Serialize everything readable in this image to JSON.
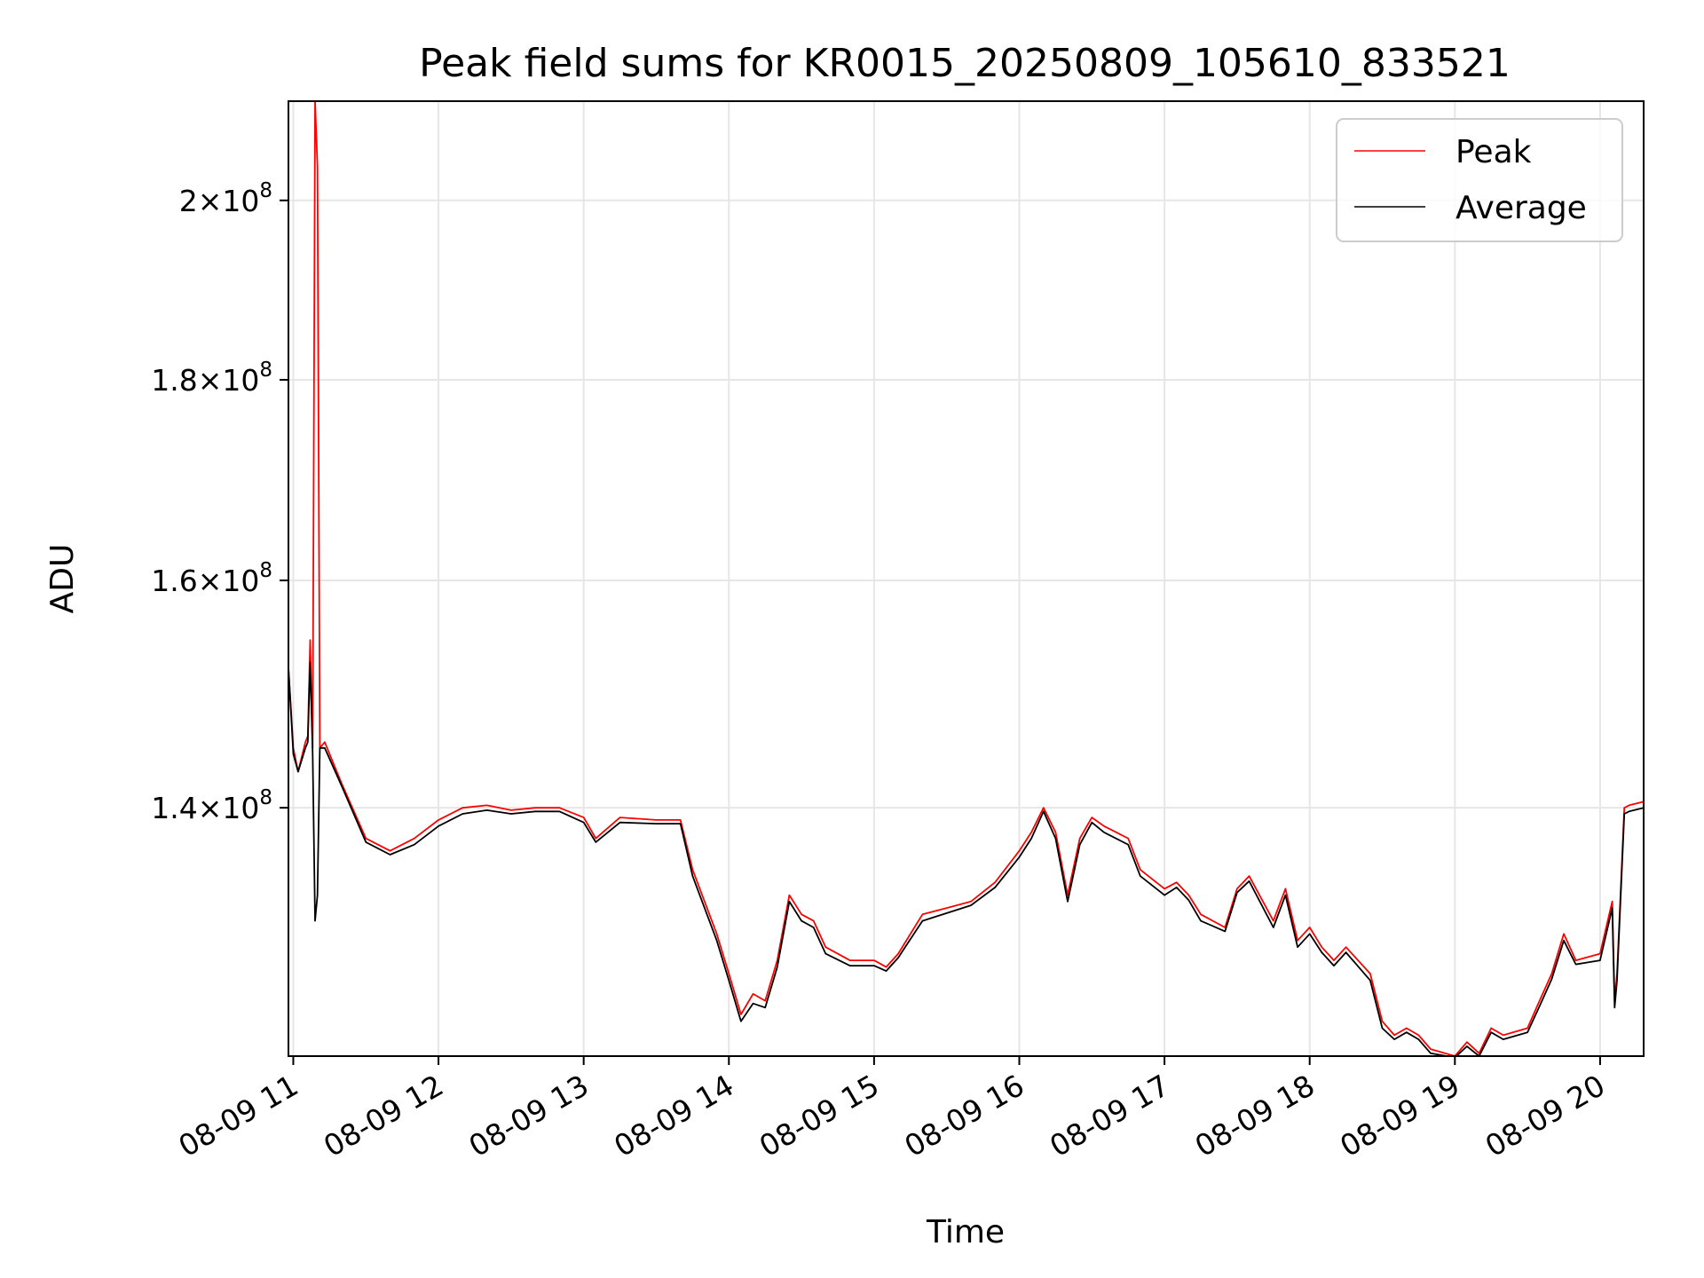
{
  "chart_data": {
    "type": "line",
    "title": "Peak field sums for KR0015_20250809_105610_833521",
    "xlabel": "Time",
    "ylabel": "ADU",
    "y_scale": "log",
    "ylim": [
      121000000,
      212000000
    ],
    "xlim": [
      "2025-08-09 10:58",
      "2025-08-09 20:18"
    ],
    "grid": true,
    "legend_position": "top-right",
    "x_ticks": [
      {
        "value": "2025-08-09 11:00",
        "label": "08-09 11"
      },
      {
        "value": "2025-08-09 12:00",
        "label": "08-09 12"
      },
      {
        "value": "2025-08-09 13:00",
        "label": "08-09 13"
      },
      {
        "value": "2025-08-09 14:00",
        "label": "08-09 14"
      },
      {
        "value": "2025-08-09 15:00",
        "label": "08-09 15"
      },
      {
        "value": "2025-08-09 16:00",
        "label": "08-09 16"
      },
      {
        "value": "2025-08-09 17:00",
        "label": "08-09 17"
      },
      {
        "value": "2025-08-09 18:00",
        "label": "08-09 18"
      },
      {
        "value": "2025-08-09 19:00",
        "label": "08-09 19"
      },
      {
        "value": "2025-08-09 20:00",
        "label": "08-09 20"
      }
    ],
    "y_ticks": [
      {
        "value": 140000000,
        "mantissa": "1.4",
        "exponent": "8"
      },
      {
        "value": 160000000,
        "mantissa": "1.6",
        "exponent": "8"
      },
      {
        "value": 180000000,
        "mantissa": "1.8",
        "exponent": "8"
      },
      {
        "value": 200000000,
        "mantissa": "2",
        "exponent": "8"
      }
    ],
    "series": [
      {
        "name": "Peak",
        "color": "#ff0000",
        "x": [
          "2025-08-09 10:58",
          "2025-08-09 11:00",
          "2025-08-09 11:02",
          "2025-08-09 11:05",
          "2025-08-09 11:06",
          "2025-08-09 11:07",
          "2025-08-09 11:08",
          "2025-08-09 11:09",
          "2025-08-09 11:10",
          "2025-08-09 11:11",
          "2025-08-09 11:13",
          "2025-08-09 11:20",
          "2025-08-09 11:30",
          "2025-08-09 11:40",
          "2025-08-09 11:50",
          "2025-08-09 12:00",
          "2025-08-09 12:10",
          "2025-08-09 12:20",
          "2025-08-09 12:30",
          "2025-08-09 12:40",
          "2025-08-09 12:50",
          "2025-08-09 13:00",
          "2025-08-09 13:05",
          "2025-08-09 13:15",
          "2025-08-09 13:30",
          "2025-08-09 13:40",
          "2025-08-09 13:45",
          "2025-08-09 13:55",
          "2025-08-09 14:00",
          "2025-08-09 14:05",
          "2025-08-09 14:10",
          "2025-08-09 14:15",
          "2025-08-09 14:20",
          "2025-08-09 14:25",
          "2025-08-09 14:30",
          "2025-08-09 14:35",
          "2025-08-09 14:40",
          "2025-08-09 14:50",
          "2025-08-09 15:00",
          "2025-08-09 15:05",
          "2025-08-09 15:10",
          "2025-08-09 15:20",
          "2025-08-09 15:30",
          "2025-08-09 15:40",
          "2025-08-09 15:50",
          "2025-08-09 16:00",
          "2025-08-09 16:05",
          "2025-08-09 16:10",
          "2025-08-09 16:15",
          "2025-08-09 16:20",
          "2025-08-09 16:25",
          "2025-08-09 16:30",
          "2025-08-09 16:35",
          "2025-08-09 16:45",
          "2025-08-09 16:50",
          "2025-08-09 17:00",
          "2025-08-09 17:05",
          "2025-08-09 17:10",
          "2025-08-09 17:15",
          "2025-08-09 17:25",
          "2025-08-09 17:30",
          "2025-08-09 17:35",
          "2025-08-09 17:45",
          "2025-08-09 17:50",
          "2025-08-09 17:55",
          "2025-08-09 18:00",
          "2025-08-09 18:05",
          "2025-08-09 18:10",
          "2025-08-09 18:15",
          "2025-08-09 18:25",
          "2025-08-09 18:30",
          "2025-08-09 18:35",
          "2025-08-09 18:40",
          "2025-08-09 18:45",
          "2025-08-09 18:50",
          "2025-08-09 19:00",
          "2025-08-09 19:05",
          "2025-08-09 19:10",
          "2025-08-09 19:15",
          "2025-08-09 19:20",
          "2025-08-09 19:30",
          "2025-08-09 19:35",
          "2025-08-09 19:40",
          "2025-08-09 19:45",
          "2025-08-09 19:50",
          "2025-08-09 20:00",
          "2025-08-09 20:05",
          "2025-08-09 20:06",
          "2025-08-09 20:07",
          "2025-08-09 20:10",
          "2025-08-09 20:12",
          "2025-08-09 20:18"
        ],
        "values": [
          152000000,
          145000000,
          143000000,
          145500000,
          146000000,
          154500000,
          145000000,
          212000000,
          204000000,
          145000000,
          145500000,
          142000000,
          137500000,
          136500000,
          137500000,
          139000000,
          140000000,
          140200000,
          139800000,
          140000000,
          140000000,
          139200000,
          137500000,
          139200000,
          139000000,
          139000000,
          135000000,
          130000000,
          127000000,
          124000000,
          125500000,
          125000000,
          128000000,
          133000000,
          131500000,
          131000000,
          129000000,
          128000000,
          128000000,
          127500000,
          128500000,
          131500000,
          132000000,
          132500000,
          134000000,
          136500000,
          138000000,
          140000000,
          138000000,
          133000000,
          137500000,
          139200000,
          138500000,
          137500000,
          135000000,
          133500000,
          134000000,
          133000000,
          131500000,
          130500000,
          133500000,
          134500000,
          131000000,
          133500000,
          129500000,
          130500000,
          129000000,
          128000000,
          129000000,
          127000000,
          123500000,
          122500000,
          123000000,
          122500000,
          121500000,
          121000000,
          122000000,
          121200000,
          123000000,
          122500000,
          123000000,
          125000000,
          127000000,
          130000000,
          128000000,
          128500000,
          132500000,
          125000000,
          127000000,
          140000000,
          140200000,
          140500000
        ]
      },
      {
        "name": "Average",
        "color": "#000000",
        "x": [
          "2025-08-09 10:58",
          "2025-08-09 11:00",
          "2025-08-09 11:02",
          "2025-08-09 11:05",
          "2025-08-09 11:06",
          "2025-08-09 11:07",
          "2025-08-09 11:08",
          "2025-08-09 11:09",
          "2025-08-09 11:10",
          "2025-08-09 11:11",
          "2025-08-09 11:13",
          "2025-08-09 11:20",
          "2025-08-09 11:30",
          "2025-08-09 11:40",
          "2025-08-09 11:50",
          "2025-08-09 12:00",
          "2025-08-09 12:10",
          "2025-08-09 12:20",
          "2025-08-09 12:30",
          "2025-08-09 12:40",
          "2025-08-09 12:50",
          "2025-08-09 13:00",
          "2025-08-09 13:05",
          "2025-08-09 13:15",
          "2025-08-09 13:30",
          "2025-08-09 13:40",
          "2025-08-09 13:45",
          "2025-08-09 13:55",
          "2025-08-09 14:00",
          "2025-08-09 14:05",
          "2025-08-09 14:10",
          "2025-08-09 14:15",
          "2025-08-09 14:20",
          "2025-08-09 14:25",
          "2025-08-09 14:30",
          "2025-08-09 14:35",
          "2025-08-09 14:40",
          "2025-08-09 14:50",
          "2025-08-09 15:00",
          "2025-08-09 15:05",
          "2025-08-09 15:10",
          "2025-08-09 15:20",
          "2025-08-09 15:30",
          "2025-08-09 15:40",
          "2025-08-09 15:50",
          "2025-08-09 16:00",
          "2025-08-09 16:05",
          "2025-08-09 16:10",
          "2025-08-09 16:15",
          "2025-08-09 16:20",
          "2025-08-09 16:25",
          "2025-08-09 16:30",
          "2025-08-09 16:35",
          "2025-08-09 16:45",
          "2025-08-09 16:50",
          "2025-08-09 17:00",
          "2025-08-09 17:05",
          "2025-08-09 17:10",
          "2025-08-09 17:15",
          "2025-08-09 17:25",
          "2025-08-09 17:30",
          "2025-08-09 17:35",
          "2025-08-09 17:45",
          "2025-08-09 17:50",
          "2025-08-09 17:55",
          "2025-08-09 18:00",
          "2025-08-09 18:05",
          "2025-08-09 18:10",
          "2025-08-09 18:15",
          "2025-08-09 18:25",
          "2025-08-09 18:30",
          "2025-08-09 18:35",
          "2025-08-09 18:40",
          "2025-08-09 18:45",
          "2025-08-09 18:50",
          "2025-08-09 19:00",
          "2025-08-09 19:05",
          "2025-08-09 19:10",
          "2025-08-09 19:15",
          "2025-08-09 19:20",
          "2025-08-09 19:30",
          "2025-08-09 19:35",
          "2025-08-09 19:40",
          "2025-08-09 19:45",
          "2025-08-09 19:50",
          "2025-08-09 20:00",
          "2025-08-09 20:05",
          "2025-08-09 20:06",
          "2025-08-09 20:07",
          "2025-08-09 20:10",
          "2025-08-09 20:12",
          "2025-08-09 20:18"
        ],
        "values": [
          152000000,
          144500000,
          143000000,
          145000000,
          145500000,
          152500000,
          144500000,
          131000000,
          133000000,
          145000000,
          145000000,
          141800000,
          137200000,
          136200000,
          137000000,
          138500000,
          139500000,
          139800000,
          139500000,
          139700000,
          139700000,
          138800000,
          137200000,
          138800000,
          138700000,
          138700000,
          134500000,
          129500000,
          126500000,
          123500000,
          124800000,
          124500000,
          127500000,
          132500000,
          131000000,
          130500000,
          128500000,
          127600000,
          127600000,
          127200000,
          128200000,
          131000000,
          131600000,
          132200000,
          133600000,
          136000000,
          137500000,
          139700000,
          137500000,
          132500000,
          137000000,
          138800000,
          138000000,
          137000000,
          134500000,
          133000000,
          133600000,
          132600000,
          131000000,
          130200000,
          133200000,
          134100000,
          130500000,
          133000000,
          129000000,
          130000000,
          128600000,
          127600000,
          128600000,
          126500000,
          123000000,
          122200000,
          122700000,
          122200000,
          121200000,
          120900000,
          121700000,
          121000000,
          122700000,
          122200000,
          122700000,
          124600000,
          126600000,
          129500000,
          127700000,
          128000000,
          132000000,
          124500000,
          126500000,
          139500000,
          139700000,
          140000000
        ]
      }
    ]
  }
}
